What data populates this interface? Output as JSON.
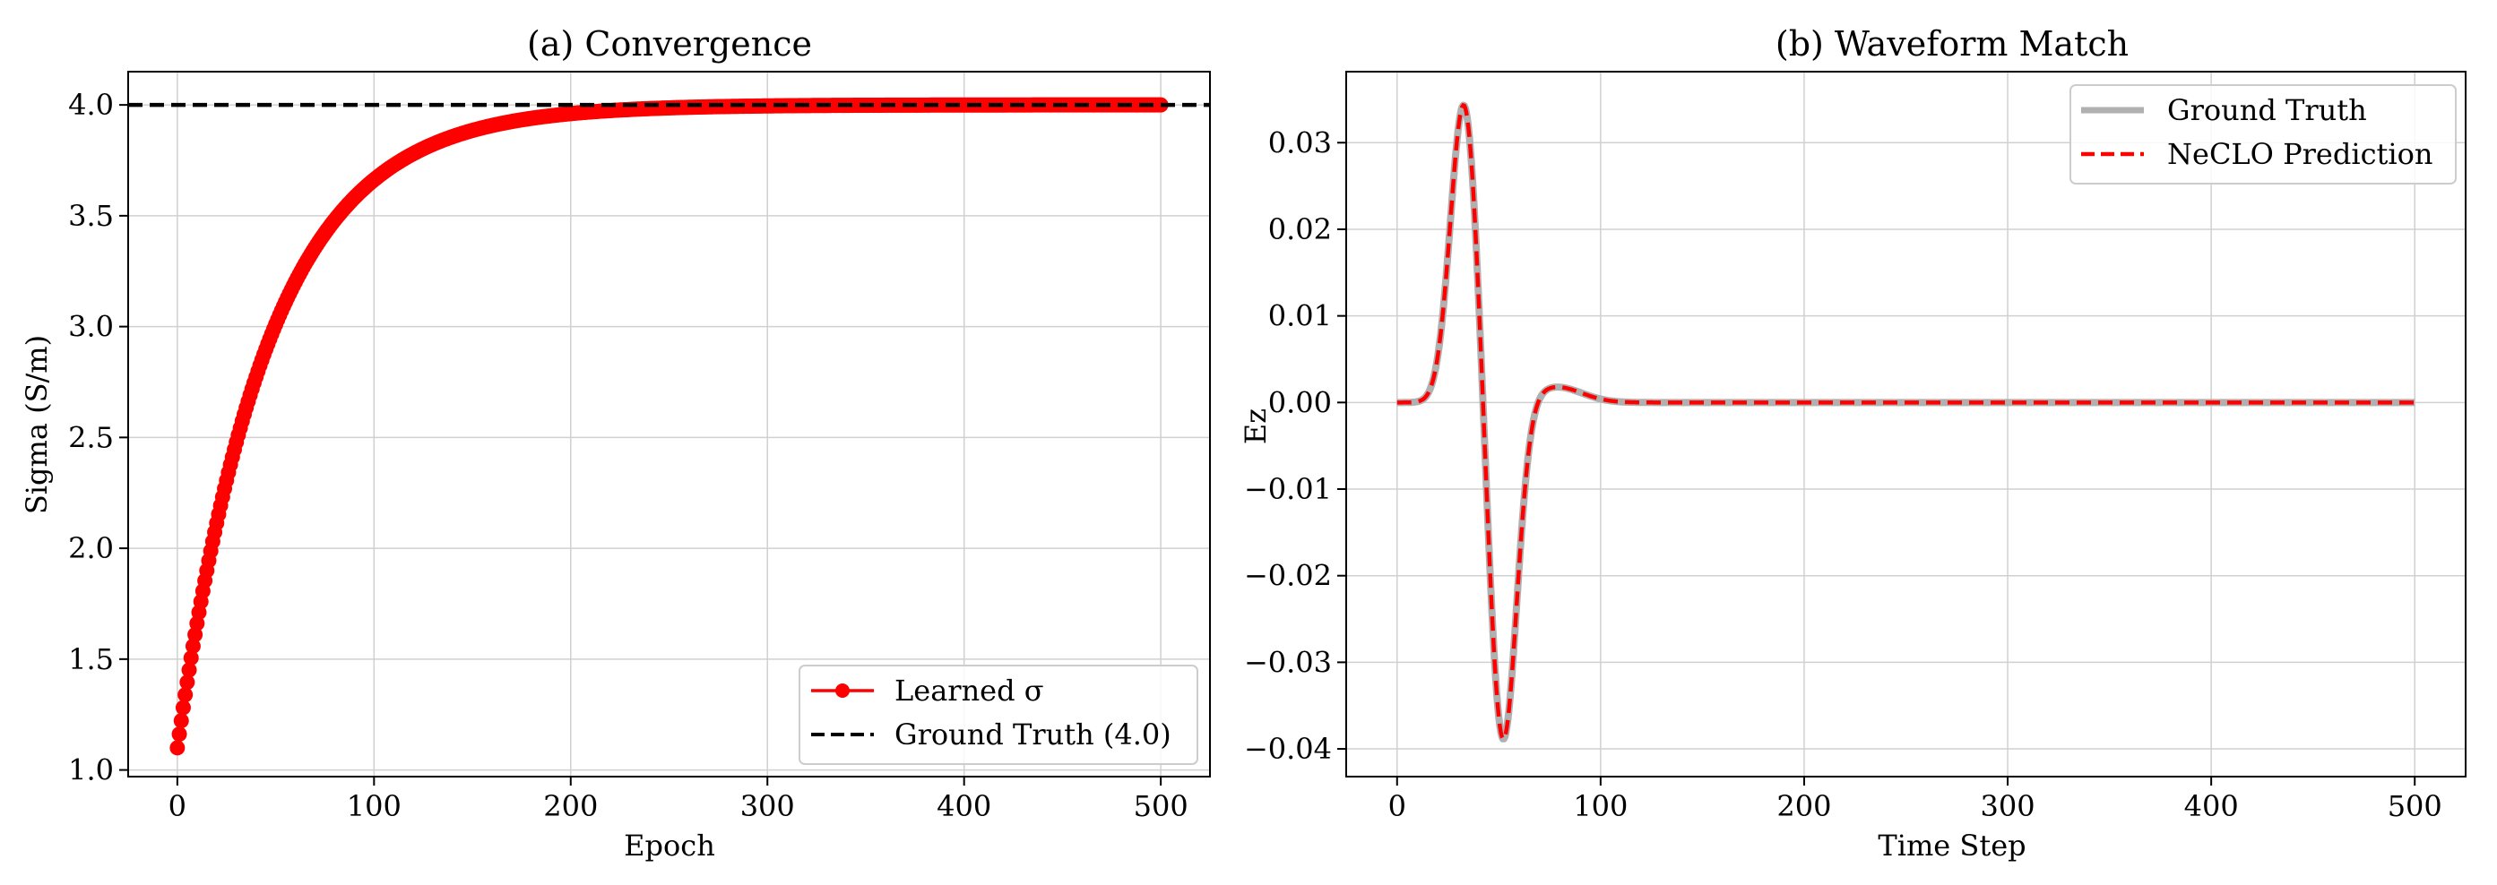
{
  "chart_data": [
    {
      "type": "line",
      "title": "(a) Convergence",
      "xlabel": "Epoch",
      "ylabel": "Sigma (S/m)",
      "xlim": [
        -25,
        525
      ],
      "ylim": [
        0.97,
        4.15
      ],
      "xticks": [
        0,
        100,
        200,
        300,
        400,
        500
      ],
      "yticks": [
        1.0,
        1.5,
        2.0,
        2.5,
        3.0,
        3.5,
        4.0
      ],
      "grid": true,
      "legend_position": "lower-right",
      "series": [
        {
          "name": "Learned σ",
          "color": "#ff0000",
          "marker": "circle",
          "model": "exponential-approach",
          "start": 1.1,
          "asymptote": 4.0,
          "rate": 0.0215,
          "epochs": [
            0,
            500
          ]
        },
        {
          "name": "Ground Truth (4.0)",
          "color": "#000000",
          "style": "dashed",
          "y": 4.0
        }
      ]
    },
    {
      "type": "line",
      "title": "(b) Waveform Match",
      "xlabel": "Time Step",
      "ylabel": "Ez",
      "xlim": [
        -25,
        525
      ],
      "ylim": [
        -0.0432,
        0.0382
      ],
      "xticks": [
        0,
        100,
        200,
        300,
        400,
        500
      ],
      "yticks": [
        -0.04,
        -0.03,
        -0.02,
        -0.01,
        0.0,
        0.01,
        0.02,
        0.03
      ],
      "ytick_labels": [
        "−0.04",
        "−0.03",
        "−0.02",
        "−0.01",
        "0.00",
        "0.01",
        "0.02",
        "0.03"
      ],
      "grid": true,
      "legend_position": "upper-right",
      "series": [
        {
          "name": "Ground Truth",
          "color": "#b0b0b0",
          "style": "solid"
        },
        {
          "name": "NeCLO Prediction",
          "color": "#ff0000",
          "style": "dashed"
        }
      ],
      "waveform": {
        "peak": {
          "t": 33,
          "value": 0.035
        },
        "trough": {
          "t": 52,
          "value": -0.0397
        },
        "rebound": {
          "t": 78,
          "value": 0.0018
        },
        "settles_to": 0.0,
        "t_range": [
          0,
          500
        ]
      }
    }
  ]
}
